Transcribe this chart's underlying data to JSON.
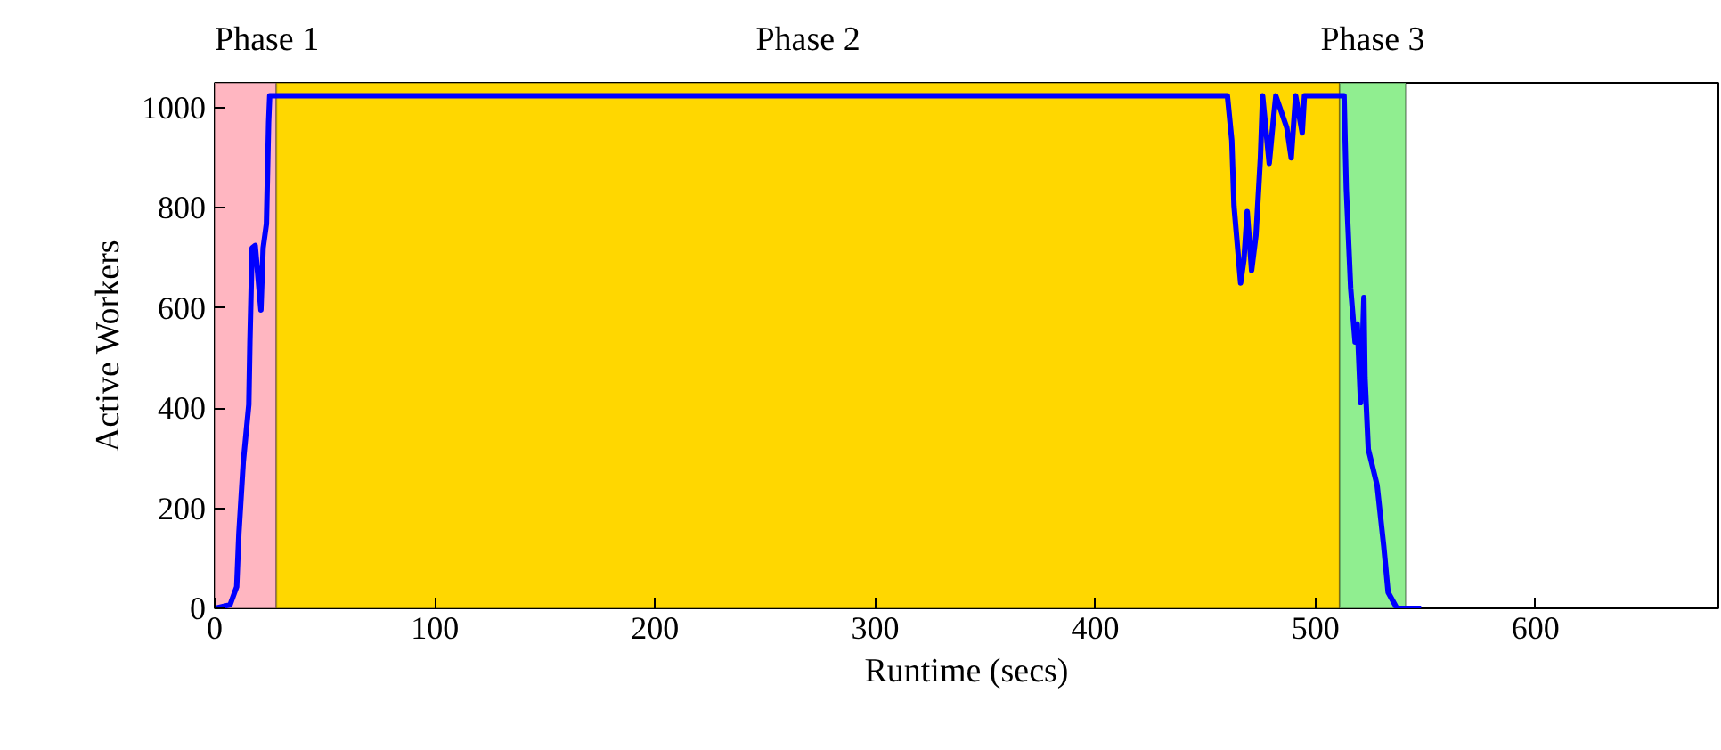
{
  "chart_data": {
    "type": "line",
    "xlabel": "Runtime (secs)",
    "ylabel": "Active Workers",
    "xlim": [
      0,
      683
    ],
    "ylim": [
      0,
      1050
    ],
    "xticks": [
      0,
      100,
      200,
      300,
      400,
      500,
      600
    ],
    "yticks": [
      0,
      200,
      400,
      600,
      800,
      1000
    ],
    "grid": false,
    "line_style": "solid",
    "marker": "none",
    "bands": [
      {
        "axis": "x",
        "from": 0,
        "to": 28,
        "label": "Phase 1",
        "color": "#ffb6c1"
      },
      {
        "axis": "x",
        "from": 28,
        "to": 511,
        "label": "Phase 2",
        "color": "#ffd700"
      },
      {
        "axis": "x",
        "from": 511,
        "to": 541,
        "label": "Phase 3",
        "color": "#90ee90"
      }
    ],
    "series": [
      {
        "color": "#0000ff",
        "x": [
          0,
          7,
          10,
          11,
          13,
          15.5,
          16,
          17,
          18.4,
          21,
          22,
          23.5,
          24.5,
          25,
          460,
          462,
          463,
          466,
          467.5,
          469,
          471,
          473,
          475,
          476,
          479,
          481,
          482,
          487,
          489,
          491,
          494,
          495,
          512,
          513,
          514,
          516,
          518,
          519,
          520.5,
          522,
          522.5,
          524,
          528,
          531,
          533,
          537,
          548
        ],
        "values": [
          0,
          7,
          43,
          150,
          293,
          407,
          532,
          720,
          725,
          596,
          720,
          768,
          971,
          1024,
          1024,
          935,
          804,
          650,
          696,
          793,
          675,
          746,
          900,
          1024,
          889,
          982,
          1024,
          960,
          900,
          1024,
          950,
          1024,
          1024,
          1024,
          839,
          639,
          532,
          568,
          411,
          621,
          461,
          318,
          246,
          125,
          32,
          0,
          0
        ]
      }
    ]
  }
}
